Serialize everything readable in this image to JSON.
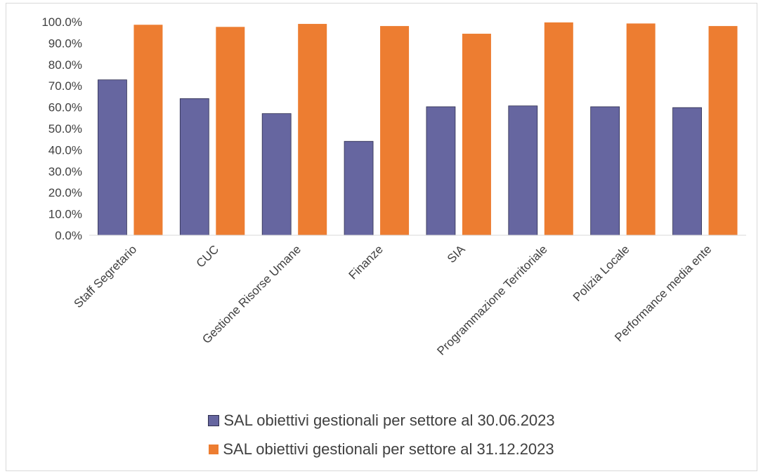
{
  "chart_data": {
    "type": "bar",
    "categories": [
      "Staff Segretario",
      "CUC",
      "Gestione Risorse Umane",
      "Finanze",
      "SIA",
      "Programmazione Territoriale",
      "Polizia Locale",
      "Performance media ente"
    ],
    "series": [
      {
        "name": "SAL obiettivi gestionali per settore al 30.06.2023",
        "color": "#6666a0",
        "values": [
          72.8,
          64.0,
          57.0,
          44.0,
          60.2,
          60.6,
          60.2,
          59.8
        ]
      },
      {
        "name": "SAL obiettivi gestionali per settore al 31.12.2023",
        "color": "#ed7d31",
        "values": [
          98.6,
          97.6,
          99.0,
          98.0,
          94.4,
          99.7,
          99.2,
          98.0
        ]
      }
    ],
    "yticks": [
      "0.0%",
      "10.0%",
      "20.0%",
      "30.0%",
      "40.0%",
      "50.0%",
      "60.0%",
      "70.0%",
      "80.0%",
      "90.0%",
      "100.0%"
    ],
    "ylim": [
      0,
      100
    ],
    "grid": false,
    "legend_position": "bottom"
  }
}
